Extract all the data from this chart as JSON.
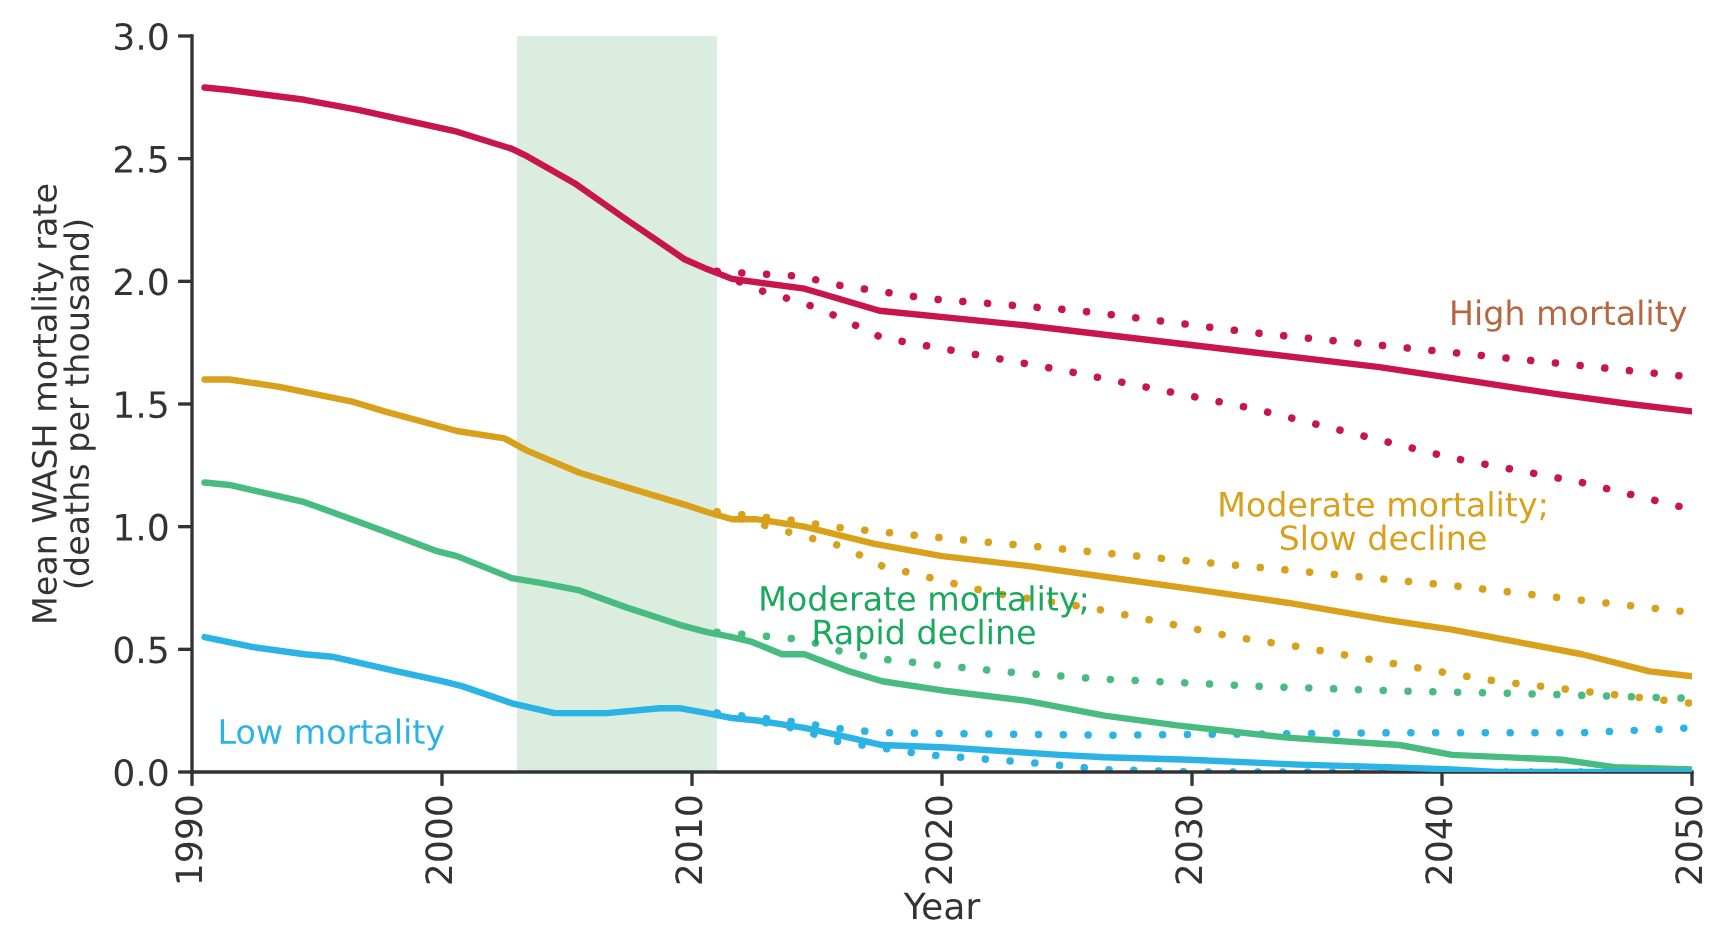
{
  "chart_data": {
    "type": "line",
    "xlabel": "Year",
    "ylabel": "Mean WASH mortality rate\n(deaths per thousand)",
    "xlim": [
      1990,
      2050
    ],
    "xticks": [
      1990,
      2000,
      2010,
      2020,
      2030,
      2040,
      2050
    ],
    "ylim": [
      0,
      3
    ],
    "yticks": [
      {
        "value": 0,
        "label": "0.0"
      },
      {
        "value": 0.5,
        "label": "0.5"
      },
      {
        "value": 1,
        "label": "1.0"
      },
      {
        "value": 1.5,
        "label": "1.5"
      },
      {
        "value": 2,
        "label": "2.0"
      },
      {
        "value": 2.5,
        "label": "2.5"
      },
      {
        "value": 3,
        "label": "3.0"
      }
    ],
    "bands": [
      {
        "axis": "x",
        "from": 2003,
        "to": 2011,
        "color": "#dbeddf"
      }
    ],
    "series": [
      {
        "name": "High mortality",
        "color": "#c8154b",
        "line_style": "solid",
        "x": [
          1990.5,
          1991.5,
          1994.5,
          1996.6,
          2000.6,
          2002.8,
          2003.4,
          2005.3,
          2007.4,
          2008.7,
          2009.7,
          2010.6,
          2011.6,
          2014.5,
          2015.5,
          2017.5,
          2023.4,
          2032.5,
          2037.5,
          2041.4,
          2044.6,
          2047.5,
          2050
        ],
        "values": [
          2.79,
          2.78,
          2.74,
          2.7,
          2.61,
          2.54,
          2.51,
          2.4,
          2.25,
          2.16,
          2.09,
          2.05,
          2.01,
          1.97,
          1.94,
          1.88,
          1.82,
          1.71,
          1.65,
          1.59,
          1.54,
          1.5,
          1.47
        ]
      },
      {
        "color": "#c8154b",
        "line_style": "dotted",
        "x": [
          2011,
          2014.5,
          2015.5,
          2019.4,
          2025.5,
          2032.5,
          2040.4,
          2050
        ],
        "values": [
          2.04,
          2.02,
          1.99,
          1.93,
          1.88,
          1.79,
          1.71,
          1.61
        ]
      },
      {
        "color": "#c8154b",
        "line_style": "dotted",
        "x": [
          2011,
          2012.5,
          2014.5,
          2015.5,
          2017.6,
          2024.7,
          2032.5,
          2040.4,
          2045.6,
          2050
        ],
        "values": [
          2.04,
          1.97,
          1.91,
          1.87,
          1.77,
          1.64,
          1.48,
          1.28,
          1.18,
          1.07
        ]
      },
      {
        "name": "Moderate mortality;\nSlow decline",
        "color": "#d9a01b",
        "line_style": "solid",
        "x": [
          1990.5,
          1991.5,
          1993.5,
          1996.4,
          1997.7,
          2000.6,
          2002.5,
          2003.4,
          2005.5,
          2007.4,
          2009.7,
          2010.6,
          2011.6,
          2012.6,
          2014.5,
          2017.3,
          2020,
          2023.4,
          2026.2,
          2030.4,
          2033.8,
          2037.8,
          2040.4,
          2043,
          2045.6,
          2048.3,
          2050
        ],
        "values": [
          1.6,
          1.6,
          1.57,
          1.51,
          1.47,
          1.39,
          1.36,
          1.31,
          1.22,
          1.16,
          1.09,
          1.06,
          1.03,
          1.03,
          1.0,
          0.93,
          0.88,
          0.84,
          0.8,
          0.74,
          0.69,
          0.62,
          0.58,
          0.53,
          0.48,
          0.41,
          0.39
        ]
      },
      {
        "color": "#d9a01b",
        "line_style": "dotted",
        "x": [
          2011,
          2014.5,
          2015.5,
          2019.4,
          2024.7,
          2029.9,
          2035.2,
          2040.4,
          2045.6,
          2050
        ],
        "values": [
          1.06,
          1.02,
          1.0,
          0.96,
          0.91,
          0.86,
          0.81,
          0.76,
          0.7,
          0.65
        ]
      },
      {
        "color": "#d9a01b",
        "line_style": "dotted",
        "x": [
          2011,
          2014.5,
          2016,
          2017.6,
          2022,
          2025.9,
          2031.7,
          2034.3,
          2040.4,
          2042.2,
          2045.6,
          2050
        ],
        "values": [
          1.06,
          0.96,
          0.92,
          0.84,
          0.73,
          0.67,
          0.55,
          0.51,
          0.4,
          0.37,
          0.33,
          0.28
        ]
      },
      {
        "name": "Moderate mortality;\nRapid decline",
        "color": "#48bb80",
        "line_style": "solid",
        "x": [
          1990.5,
          1991.5,
          1994.5,
          1997.2,
          1999.8,
          2000.6,
          2002.8,
          2004,
          2005.5,
          2007.4,
          2009.5,
          2010.6,
          2011.6,
          2012.4,
          2013.6,
          2014.5,
          2016.3,
          2017.6,
          2020.2,
          2023.4,
          2026.5,
          2029.4,
          2033.8,
          2038.3,
          2040.4,
          2044.8,
          2046.9,
          2050
        ],
        "values": [
          1.18,
          1.17,
          1.1,
          1.0,
          0.9,
          0.88,
          0.79,
          0.77,
          0.74,
          0.67,
          0.6,
          0.57,
          0.55,
          0.53,
          0.48,
          0.48,
          0.41,
          0.37,
          0.33,
          0.29,
          0.23,
          0.19,
          0.14,
          0.11,
          0.07,
          0.05,
          0.02,
          0.01
        ]
      },
      {
        "color": "#48bb80",
        "line_style": "dotted",
        "x": [
          2011,
          2014.5,
          2016,
          2017.6,
          2022.3,
          2026.2,
          2032.5,
          2038.3,
          2043,
          2050
        ],
        "values": [
          0.57,
          0.54,
          0.49,
          0.46,
          0.41,
          0.38,
          0.35,
          0.33,
          0.32,
          0.3
        ]
      },
      {
        "name": "Low mortality",
        "color": "#2bb3e6",
        "line_style": "solid",
        "x": [
          1990.5,
          1992.4,
          1994.5,
          1995.6,
          1998.2,
          2000,
          2000.8,
          2002.8,
          2004.5,
          2006.6,
          2008.7,
          2009.5,
          2010.6,
          2011.6,
          2012.6,
          2014.5,
          2016.3,
          2017.6,
          2020.2,
          2024.7,
          2026.5,
          2029.9,
          2034.3,
          2037.8,
          2040.4,
          2042.2,
          2050
        ],
        "values": [
          0.55,
          0.51,
          0.48,
          0.47,
          0.41,
          0.37,
          0.35,
          0.28,
          0.24,
          0.24,
          0.26,
          0.26,
          0.24,
          0.22,
          0.21,
          0.18,
          0.14,
          0.11,
          0.1,
          0.07,
          0.06,
          0.05,
          0.03,
          0.02,
          0.01,
          0.0,
          0.0
        ]
      },
      {
        "color": "#2bb3e6",
        "line_style": "dotted",
        "x": [
          2011,
          2014.5,
          2015.5,
          2017.6,
          2026.5,
          2038.3,
          2045.6,
          2050
        ],
        "values": [
          0.24,
          0.2,
          0.18,
          0.16,
          0.15,
          0.16,
          0.16,
          0.18
        ]
      },
      {
        "color": "#2bb3e6",
        "line_style": "dotted",
        "x": [
          2011,
          2014.5,
          2015.5,
          2019.4,
          2023.4,
          2026.5,
          2030,
          2050
        ],
        "values": [
          0.24,
          0.17,
          0.13,
          0.07,
          0.04,
          0.01,
          0.0,
          0.0
        ]
      }
    ]
  }
}
